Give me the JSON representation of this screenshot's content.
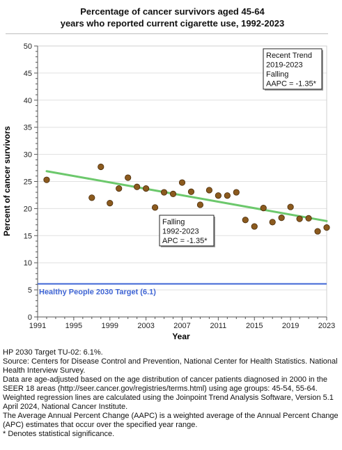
{
  "chart_data": {
    "type": "scatter",
    "title_lines": [
      "Percentage of cancer survivors aged 45-64",
      "years who reported current cigarette use, 1992-2023"
    ],
    "xlabel": "Year",
    "ylabel": "Percent of cancer survivors",
    "xlim": [
      1991,
      2023
    ],
    "ylim": [
      0,
      50
    ],
    "x_ticks": [
      1991,
      1995,
      1999,
      2003,
      2007,
      2011,
      2015,
      2019,
      2023
    ],
    "y_ticks": [
      0,
      5,
      10,
      15,
      20,
      25,
      30,
      35,
      40,
      45,
      50
    ],
    "points": [
      {
        "x": 1992,
        "y": 25.3
      },
      {
        "x": 1997,
        "y": 22.0
      },
      {
        "x": 1998,
        "y": 27.7
      },
      {
        "x": 1999,
        "y": 21.0
      },
      {
        "x": 2000,
        "y": 23.7
      },
      {
        "x": 2001,
        "y": 25.7
      },
      {
        "x": 2002,
        "y": 24.0
      },
      {
        "x": 2003,
        "y": 23.7
      },
      {
        "x": 2004,
        "y": 20.2
      },
      {
        "x": 2005,
        "y": 23.0
      },
      {
        "x": 2006,
        "y": 22.7
      },
      {
        "x": 2007,
        "y": 24.8
      },
      {
        "x": 2008,
        "y": 23.1
      },
      {
        "x": 2009,
        "y": 20.7
      },
      {
        "x": 2010,
        "y": 23.4
      },
      {
        "x": 2011,
        "y": 22.4
      },
      {
        "x": 2012,
        "y": 22.4
      },
      {
        "x": 2013,
        "y": 23.0
      },
      {
        "x": 2014,
        "y": 17.9
      },
      {
        "x": 2015,
        "y": 16.7
      },
      {
        "x": 2016,
        "y": 20.1
      },
      {
        "x": 2017,
        "y": 17.5
      },
      {
        "x": 2018,
        "y": 18.3
      },
      {
        "x": 2019,
        "y": 20.3
      },
      {
        "x": 2020,
        "y": 18.1
      },
      {
        "x": 2021,
        "y": 18.2
      },
      {
        "x": 2022,
        "y": 15.8
      },
      {
        "x": 2023,
        "y": 16.5
      }
    ],
    "trend_line": {
      "x": [
        1992,
        2023
      ],
      "y": [
        26.9,
        17.7
      ]
    },
    "target": {
      "label": "Healthy People 2030 Target (6.1)",
      "value": 6.1
    },
    "annotations": [
      {
        "id": "recent",
        "lines": [
          "Recent Trend",
          "2019-2023",
          "Falling",
          "AAPC = -1.35*"
        ]
      },
      {
        "id": "overall",
        "lines": [
          "Falling",
          "1992-2023",
          "APC = -1.35*"
        ]
      }
    ],
    "colors": {
      "points": "#8b5a1e",
      "trend": "#6cc86c",
      "target": "#3e64d4",
      "axis": "#555555",
      "grid": "#e0e0e0"
    },
    "grid": true
  },
  "notes": [
    "HP 2030 Target TU-02: 6.1%.",
    "Source: Centers for Disease Control and Prevention, National Center for Health Statistics. National Health Interview Survey.",
    "Data are age-adjusted based on the age distribution of cancer patients diagnosed in 2000 in the SEER 18 areas (http://seer.cancer.gov/registries/terms.html) using age groups: 45-54, 55-64.",
    "Weighted regression lines are calculated using the Joinpoint Trend Analysis Software, Version 5.1 April 2024, National Cancer Institute.",
    "The Average Annual Percent Change (AAPC) is a weighted average of the Annual Percent Change (APC) estimates that occur over the specified year range.",
    "* Denotes statistical significance."
  ]
}
